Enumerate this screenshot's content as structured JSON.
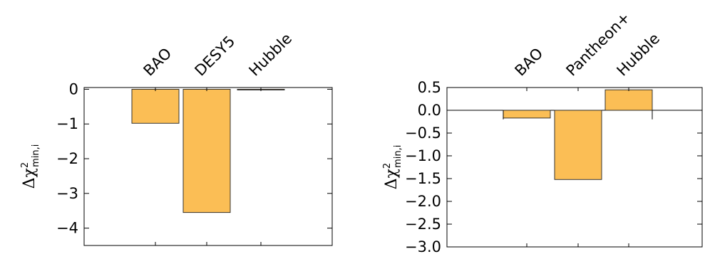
{
  "chart_data": [
    {
      "type": "bar",
      "categories": [
        "BAO",
        "DESY5",
        "Hubble"
      ],
      "values": [
        -0.98,
        -3.55,
        -0.01
      ],
      "ylabel": "Δχ²min,i",
      "ylabel_parts": {
        "base": "Δχ",
        "sup": "2",
        "sub": "min,i"
      },
      "ylim": [
        -4.5,
        0.05
      ],
      "yticks": [
        0,
        -1,
        -2,
        -3,
        -4
      ],
      "ytick_labels": [
        "0",
        "−1",
        "−2",
        "−3",
        "−4"
      ],
      "bar_color": "#fbbe55",
      "grid": false
    },
    {
      "type": "bar",
      "categories": [
        "BAO",
        "Pantheon+",
        "Hubble"
      ],
      "values": [
        -0.17,
        -1.52,
        0.45
      ],
      "error_bars": [
        0.2,
        0,
        0.2
      ],
      "ylabel": "Δχ²min,i",
      "ylabel_parts": {
        "base": "Δχ",
        "sup": "2",
        "sub": "min,i"
      },
      "ylim": [
        -3.0,
        0.5
      ],
      "yticks": [
        0.5,
        0.0,
        -0.5,
        -1.0,
        -1.5,
        -2.0,
        -2.5,
        -3.0
      ],
      "ytick_labels": [
        "0.5",
        "0.0",
        "−0.5",
        "−1.0",
        "−1.5",
        "−2.0",
        "−2.5",
        "−3.0"
      ],
      "bar_color": "#fbbe55",
      "zero_line": true,
      "grid": false
    }
  ]
}
